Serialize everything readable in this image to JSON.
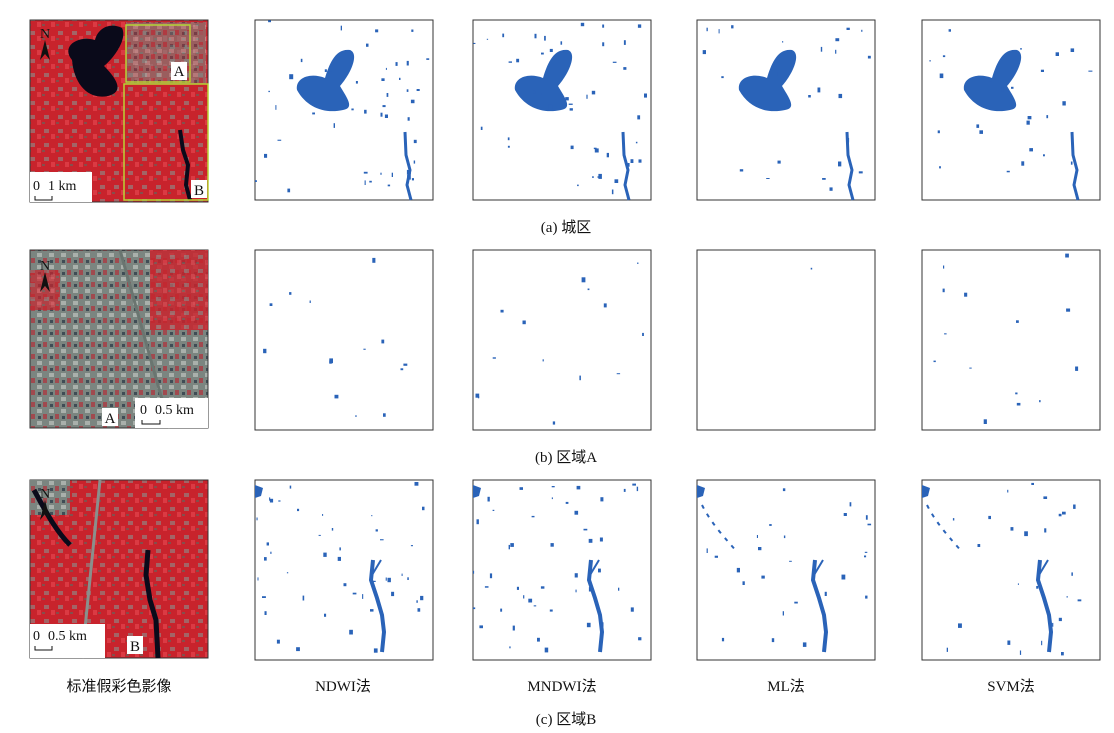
{
  "rows": [
    {
      "caption": "(a) 城区",
      "scale_start": "0",
      "scale_end": "1 km",
      "labels": [
        "A",
        "B"
      ]
    },
    {
      "caption": "(b) 区域A",
      "scale_start": "0",
      "scale_end": "0.5 km",
      "labels": [
        "A"
      ]
    },
    {
      "caption": "(c) 区域B",
      "scale_start": "0",
      "scale_end": "0.5 km",
      "labels": [
        "B"
      ]
    }
  ],
  "north_label": "N",
  "column_labels": [
    "标准假彩色影像",
    "NDWI法",
    "MNDWI法",
    "ML法",
    "SVM法"
  ]
}
